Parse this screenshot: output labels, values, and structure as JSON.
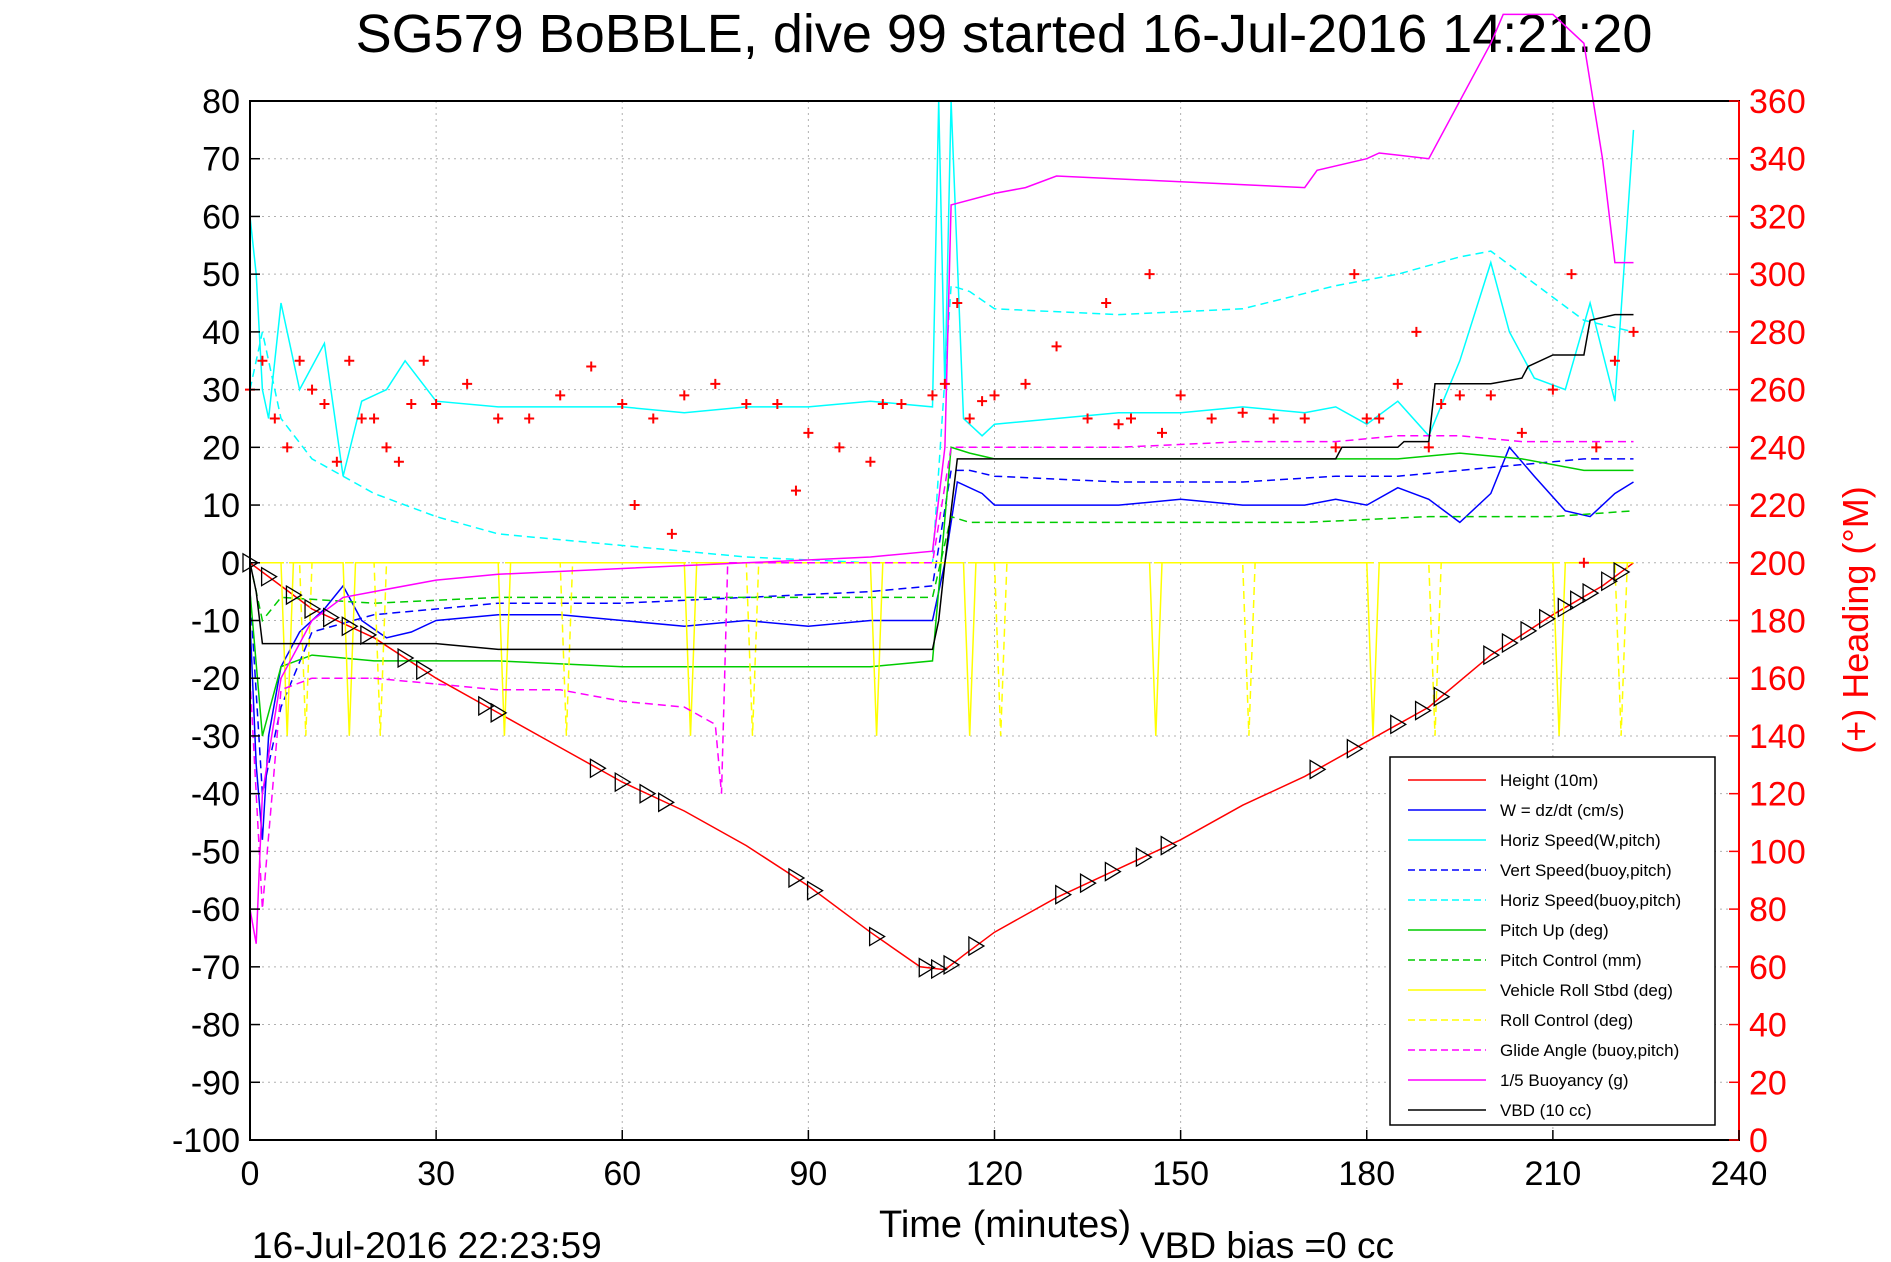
{
  "chart_data": {
    "type": "line",
    "title": "SG579 BoBBLE, dive 99 started 16-Jul-2016 14:21:20",
    "xlabel": "Time (minutes)",
    "ylabel_right": "(+) Heading (°M)",
    "xlim": [
      0,
      240
    ],
    "ylim": [
      -100,
      80
    ],
    "ylim_right": [
      0,
      360
    ],
    "xticks": [
      0,
      30,
      60,
      90,
      120,
      150,
      180,
      210,
      240
    ],
    "yticks": [
      80,
      70,
      60,
      50,
      40,
      30,
      20,
      10,
      0,
      -10,
      -20,
      -30,
      -40,
      -50,
      -60,
      -70,
      -80,
      -90,
      -100
    ],
    "yticks_right": [
      360,
      340,
      320,
      300,
      280,
      260,
      240,
      220,
      200,
      180,
      160,
      140,
      120,
      100,
      80,
      60,
      40,
      20,
      0
    ],
    "grid": true,
    "legend_position": "bottom-right",
    "footer_left": "16-Jul-2016 22:23:59",
    "footer_right": "VBD bias =0 cc",
    "colors": {
      "red": "#ff0000",
      "blue": "#0000ff",
      "cyan": "#00ffff",
      "green": "#00cc00",
      "yellow": "#ffff00",
      "magenta": "#ff00ff",
      "black": "#000000",
      "grid": "#b0b0b0"
    },
    "series": [
      {
        "name": "Height (10m)",
        "color": "#ff0000",
        "dash": false,
        "x": [
          0,
          5,
          10,
          20,
          30,
          40,
          50,
          60,
          70,
          80,
          90,
          100,
          108,
          112,
          115,
          120,
          130,
          140,
          150,
          160,
          170,
          180,
          190,
          200,
          210,
          218,
          223
        ],
        "y": [
          0,
          -4,
          -8,
          -13,
          -20,
          -26,
          -32,
          -38,
          -43,
          -49,
          -56,
          -64,
          -70,
          -70.5,
          -68,
          -64,
          -58,
          -53,
          -48,
          -42,
          -37,
          -31,
          -25,
          -16,
          -9,
          -4,
          0
        ]
      },
      {
        "name": "W = dz/dt (cm/s)",
        "color": "#0000ff",
        "dash": false,
        "x": [
          0,
          1,
          2,
          3,
          5,
          8,
          12,
          15,
          18,
          22,
          26,
          30,
          40,
          50,
          60,
          70,
          80,
          90,
          100,
          110,
          112,
          114,
          118,
          120,
          130,
          140,
          150,
          160,
          170,
          175,
          180,
          185,
          190,
          195,
          200,
          203,
          207,
          212,
          216,
          220,
          223
        ],
        "y": [
          -10,
          -35,
          -48,
          -30,
          -18,
          -12,
          -8,
          -4,
          -10,
          -13,
          -12,
          -10,
          -9,
          -9,
          -10,
          -11,
          -10,
          -11,
          -10,
          -10,
          0,
          14,
          12,
          10,
          10,
          10,
          11,
          10,
          10,
          11,
          10,
          13,
          11,
          7,
          12,
          20,
          15,
          9,
          8,
          12,
          14
        ]
      },
      {
        "name": "Horiz Speed(W,pitch)",
        "color": "#00ffff",
        "dash": false,
        "x": [
          0,
          1,
          2,
          3,
          5,
          8,
          12,
          15,
          18,
          22,
          25,
          30,
          40,
          50,
          60,
          70,
          80,
          90,
          100,
          110,
          111,
          112,
          113,
          115,
          118,
          120,
          130,
          140,
          150,
          160,
          170,
          175,
          180,
          185,
          190,
          195,
          200,
          203,
          207,
          212,
          216,
          220,
          223
        ],
        "y": [
          60,
          50,
          30,
          25,
          45,
          30,
          38,
          15,
          28,
          30,
          35,
          28,
          27,
          27,
          27,
          26,
          27,
          27,
          28,
          27,
          80,
          30,
          80,
          25,
          22,
          24,
          25,
          26,
          26,
          27,
          26,
          27,
          24,
          28,
          22,
          35,
          52,
          40,
          32,
          30,
          45,
          28,
          75
        ]
      },
      {
        "name": "Vert Speed(buoy,pitch)",
        "color": "#0000ff",
        "dash": true,
        "x": [
          0,
          2,
          5,
          10,
          20,
          30,
          40,
          60,
          80,
          100,
          110,
          113,
          116,
          120,
          140,
          160,
          175,
          185,
          195,
          205,
          215,
          223
        ],
        "y": [
          -5,
          -40,
          -25,
          -12,
          -9,
          -8,
          -7,
          -7,
          -6,
          -5,
          -4,
          16,
          16,
          15,
          14,
          14,
          15,
          15,
          16,
          17,
          18,
          18
        ]
      },
      {
        "name": "Horiz Speed(buoy,pitch)",
        "color": "#00ffff",
        "dash": true,
        "x": [
          0,
          2,
          5,
          10,
          20,
          30,
          40,
          60,
          80,
          100,
          110,
          113,
          116,
          120,
          140,
          160,
          175,
          185,
          195,
          200,
          205,
          215,
          223
        ],
        "y": [
          30,
          40,
          25,
          18,
          12,
          8,
          5,
          3,
          1,
          0,
          0,
          48,
          47,
          44,
          43,
          44,
          48,
          50,
          53,
          54,
          50,
          42,
          40
        ]
      },
      {
        "name": "Pitch Up (deg)",
        "color": "#00cc00",
        "dash": false,
        "x": [
          0,
          2,
          5,
          10,
          20,
          30,
          40,
          60,
          80,
          100,
          110,
          113,
          116,
          120,
          140,
          160,
          175,
          185,
          195,
          205,
          215,
          223
        ],
        "y": [
          -5,
          -30,
          -18,
          -16,
          -17,
          -17,
          -17,
          -18,
          -18,
          -18,
          -17,
          20,
          19,
          18,
          18,
          18,
          18,
          18,
          19,
          18,
          16,
          16
        ]
      },
      {
        "name": "Pitch Control (mm)",
        "color": "#00cc00",
        "dash": true,
        "x": [
          0,
          2,
          5,
          20,
          40,
          60,
          80,
          100,
          110,
          113,
          116,
          140,
          170,
          190,
          210,
          223
        ],
        "y": [
          0,
          -10,
          -6,
          -7,
          -6,
          -6,
          -6,
          -6,
          -6,
          8,
          7,
          7,
          7,
          8,
          8,
          9
        ]
      },
      {
        "name": "Vehicle Roll Stbd (deg)",
        "color": "#ffff00",
        "dash": false,
        "x": [
          0,
          5,
          6,
          7,
          15,
          16,
          17,
          30,
          40,
          41,
          42,
          60,
          70,
          71,
          72,
          90,
          100,
          101,
          102,
          110,
          113,
          115,
          116,
          117,
          140,
          145,
          146,
          147,
          170,
          180,
          181,
          182,
          200,
          210,
          211,
          212,
          223
        ],
        "y": [
          0,
          0,
          -30,
          0,
          0,
          -30,
          0,
          0,
          0,
          -30,
          0,
          0,
          0,
          -30,
          0,
          0,
          0,
          -30,
          0,
          0,
          0,
          0,
          -30,
          0,
          0,
          0,
          -30,
          0,
          0,
          0,
          -30,
          0,
          0,
          0,
          -30,
          0,
          0
        ]
      },
      {
        "name": "Roll Control (deg)",
        "color": "#ffff00",
        "dash": true,
        "x": [
          0,
          8,
          9,
          10,
          20,
          21,
          22,
          50,
          51,
          52,
          80,
          81,
          82,
          120,
          121,
          122,
          160,
          161,
          162,
          190,
          191,
          192,
          220,
          221,
          222,
          223
        ],
        "y": [
          0,
          0,
          -30,
          0,
          0,
          -30,
          0,
          0,
          -30,
          0,
          0,
          -30,
          0,
          0,
          -30,
          0,
          0,
          -30,
          0,
          0,
          -30,
          0,
          0,
          -30,
          0,
          0
        ]
      },
      {
        "name": "Glide Angle (buoy,pitch)",
        "color": "#ff00ff",
        "dash": true,
        "x": [
          0,
          2,
          5,
          10,
          20,
          30,
          40,
          50,
          60,
          70,
          75,
          76,
          77,
          80,
          100,
          110,
          113,
          116,
          140,
          160,
          175,
          185,
          195,
          205,
          215,
          223
        ],
        "y": [
          -20,
          -60,
          -22,
          -20,
          -20,
          -21,
          -22,
          -22,
          -24,
          -25,
          -28,
          -40,
          0,
          0,
          0,
          0,
          20,
          20,
          20,
          21,
          21,
          22,
          22,
          21,
          21,
          21
        ]
      },
      {
        "name": "1/5 Buoyancy (g)",
        "color": "#ff00ff",
        "dash": false,
        "x": [
          0,
          1,
          2,
          5,
          10,
          15,
          20,
          30,
          40,
          60,
          80,
          100,
          110,
          112,
          113,
          120,
          125,
          130,
          150,
          170,
          172,
          180,
          182,
          190,
          200,
          202,
          210,
          215,
          218,
          220,
          223
        ],
        "y": [
          -60,
          -66,
          -40,
          -20,
          -10,
          -6,
          -5,
          -3,
          -2,
          -1,
          0,
          1,
          2,
          20,
          62,
          64,
          65,
          67,
          66,
          65,
          68,
          70,
          71,
          70,
          90,
          95,
          95,
          90,
          70,
          52,
          52
        ]
      },
      {
        "name": "VBD (10 cc)",
        "color": "#000000",
        "dash": false,
        "x": [
          0,
          1,
          2,
          30,
          40,
          60,
          80,
          100,
          110,
          111,
          112,
          114,
          120,
          140,
          160,
          175,
          176,
          185,
          186,
          190,
          191,
          200,
          205,
          206,
          210,
          215,
          216,
          220,
          223
        ],
        "y": [
          0,
          -5,
          -14,
          -14,
          -15,
          -15,
          -15,
          -15,
          -15,
          -10,
          0,
          18,
          18,
          18,
          18,
          18,
          20,
          20,
          21,
          21,
          31,
          31,
          32,
          34,
          36,
          36,
          42,
          43,
          43
        ]
      }
    ],
    "heading": {
      "name": "(+) Heading (°M)",
      "color": "#ff0000",
      "marker": "+",
      "x": [
        0,
        2,
        4,
        6,
        8,
        10,
        12,
        14,
        16,
        18,
        20,
        22,
        24,
        26,
        28,
        30,
        35,
        40,
        45,
        50,
        55,
        60,
        62,
        65,
        68,
        70,
        75,
        80,
        85,
        88,
        90,
        95,
        100,
        102,
        105,
        110,
        112,
        114,
        116,
        118,
        120,
        125,
        130,
        135,
        138,
        140,
        142,
        145,
        147,
        150,
        155,
        160,
        165,
        170,
        175,
        178,
        180,
        182,
        185,
        188,
        190,
        192,
        195,
        200,
        205,
        210,
        213,
        215,
        217,
        220,
        223
      ],
      "y": [
        260,
        270,
        250,
        240,
        270,
        260,
        255,
        235,
        270,
        250,
        250,
        240,
        235,
        255,
        270,
        255,
        262,
        250,
        250,
        258,
        268,
        255,
        220,
        250,
        210,
        258,
        262,
        255,
        255,
        225,
        245,
        240,
        235,
        255,
        255,
        258,
        262,
        290,
        250,
        256,
        258,
        262,
        275,
        250,
        290,
        248,
        250,
        300,
        245,
        258,
        250,
        252,
        250,
        250,
        240,
        300,
        250,
        250,
        262,
        280,
        240,
        255,
        258,
        258,
        245,
        260,
        300,
        200,
        240,
        270,
        280
      ]
    },
    "triangles": {
      "color": "#000000",
      "x": [
        0,
        3,
        7,
        10,
        13,
        16,
        19,
        25,
        28,
        38,
        40,
        56,
        60,
        64,
        67,
        88,
        91,
        101,
        109,
        111,
        113,
        117,
        131,
        135,
        139,
        144,
        148,
        172,
        178,
        185,
        189,
        192,
        200,
        203,
        206,
        209,
        212,
        214,
        216,
        219,
        221
      ]
    }
  }
}
